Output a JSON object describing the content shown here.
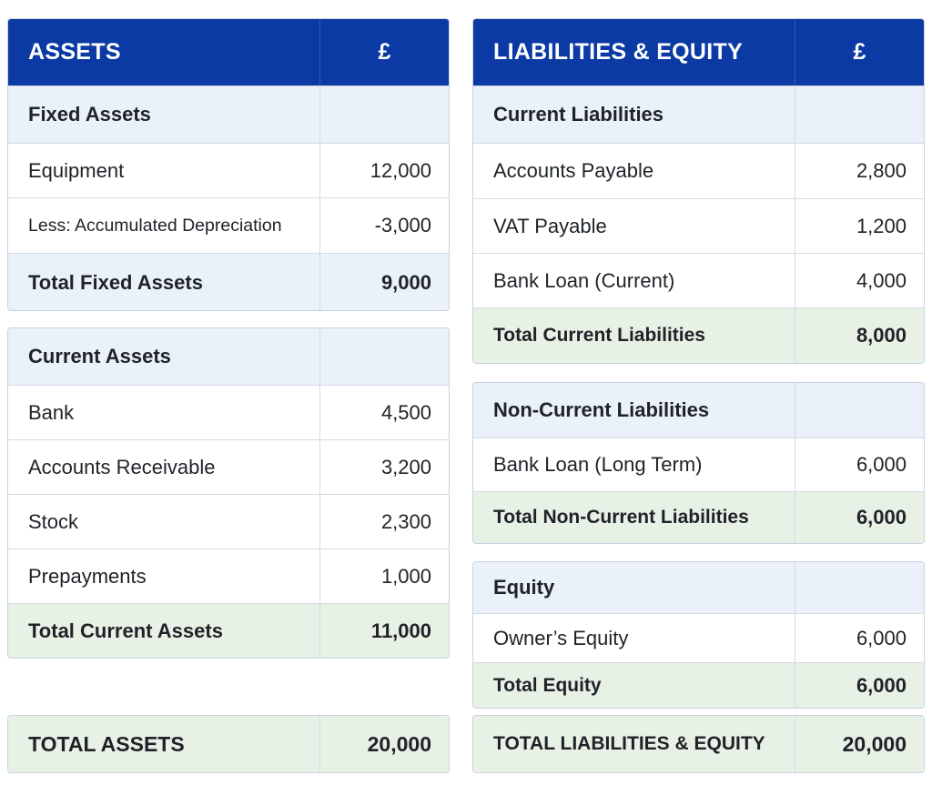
{
  "assets": {
    "header": {
      "title": "ASSETS",
      "currency": "£"
    },
    "fixed": {
      "title": "Fixed Assets",
      "items": [
        {
          "label": "Equipment",
          "amount": "12,000"
        },
        {
          "label": "Less: Accumulated Depreciation",
          "amount": "-3,000"
        }
      ],
      "total": {
        "label": "Total Fixed Assets",
        "amount": "9,000"
      }
    },
    "current": {
      "title": "Current Assets",
      "items": [
        {
          "label": "Bank",
          "amount": "4,500"
        },
        {
          "label": "Accounts Receivable",
          "amount": "3,200"
        },
        {
          "label": "Stock",
          "amount": "2,300"
        },
        {
          "label": "Prepayments",
          "amount": "1,000"
        }
      ],
      "total": {
        "label": "Total Current Assets",
        "amount": "11,000"
      }
    },
    "grand_total": {
      "label": "TOTAL ASSETS",
      "amount": "20,000"
    }
  },
  "liabilities": {
    "header": {
      "title": "LIABILITIES & EQUITY",
      "currency": "£"
    },
    "current": {
      "title": "Current Liabilities",
      "items": [
        {
          "label": "Accounts Payable",
          "amount": "2,800"
        },
        {
          "label": "VAT Payable",
          "amount": "1,200"
        },
        {
          "label": "Bank Loan (Current)",
          "amount": "4,000"
        }
      ],
      "total": {
        "label": "Total Current Liabilities",
        "amount": "8,000"
      }
    },
    "non_current": {
      "title": "Non-Current Liabilities",
      "items": [
        {
          "label": "Bank Loan (Long Term)",
          "amount": "6,000"
        }
      ],
      "total": {
        "label": "Total Non-Current Liabilities",
        "amount": "6,000"
      }
    },
    "equity": {
      "title": "Equity",
      "items": [
        {
          "label": "Owner’s Equity",
          "amount": "6,000"
        }
      ],
      "total": {
        "label": "Total Equity",
        "amount": "6,000"
      }
    },
    "grand_total": {
      "label": "TOTAL LIABILITIES & EQUITY",
      "amount": "20,000"
    }
  },
  "colors": {
    "header_blue": "#0b3aa4",
    "section_blue": "#eaf1fb",
    "total_green": "#e8f1e5"
  }
}
